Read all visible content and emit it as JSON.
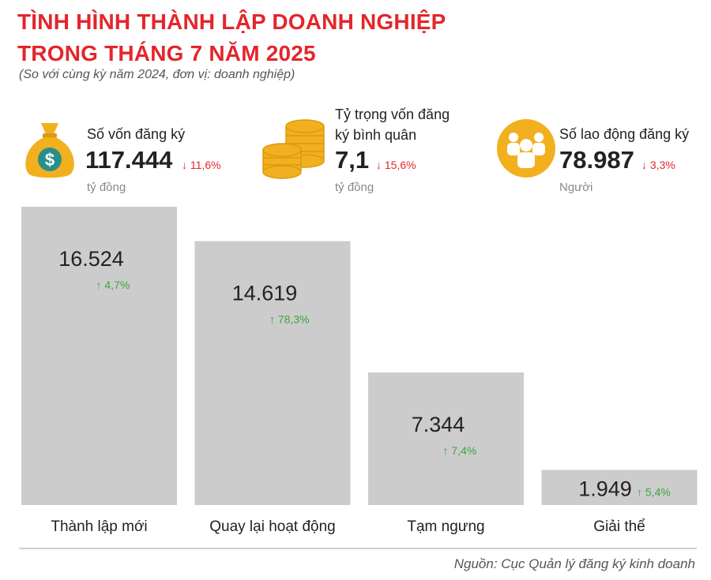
{
  "header": {
    "title_line1": "TÌNH HÌNH THÀNH LẬP DOANH NGHIỆP",
    "title_line2": "TRONG THÁNG 7 NĂM 2025",
    "subtitle": "(So với cùng kỳ năm 2024, đơn vị: doanh nghiệp)"
  },
  "stats": {
    "capital": {
      "label": "Số vốn đăng ký",
      "value": "117.444",
      "change": "11,6%",
      "unit": "tỷ đồng",
      "icon": "money-bag-icon"
    },
    "avg": {
      "label_line1": "Tỷ trọng vốn đăng",
      "label_line2": "ký bình quân",
      "value": "7,1",
      "change": "15,6%",
      "unit": "tỷ đồng",
      "icon": "coin-stack-icon"
    },
    "labor": {
      "label": "Số lao động đăng ký",
      "value": "78.987",
      "change": "3,3%",
      "unit": "Người",
      "icon": "people-icon"
    }
  },
  "colors": {
    "accent": "#e3262b",
    "bar": "#cccccc",
    "up": "#3ba53b",
    "down": "#e3262b",
    "icon_gold": "#f2b01e"
  },
  "chart_data": {
    "type": "bar",
    "categories": [
      "Thành lập mới",
      "Quay lại hoạt động",
      "Tạm ngưng",
      "Giải thể"
    ],
    "values": [
      16524,
      14619,
      7344,
      1949
    ],
    "value_labels": [
      "16.524",
      "14.619",
      "7.344",
      "1.949"
    ],
    "changes": [
      "4,7%",
      "78,3%",
      "7,4%",
      "5,4%"
    ],
    "change_direction": [
      "up",
      "up",
      "up",
      "up"
    ],
    "ylim": [
      0,
      16524
    ]
  },
  "footer": {
    "source": "Nguồn: Cục Quản lý đăng ký kinh doanh"
  }
}
